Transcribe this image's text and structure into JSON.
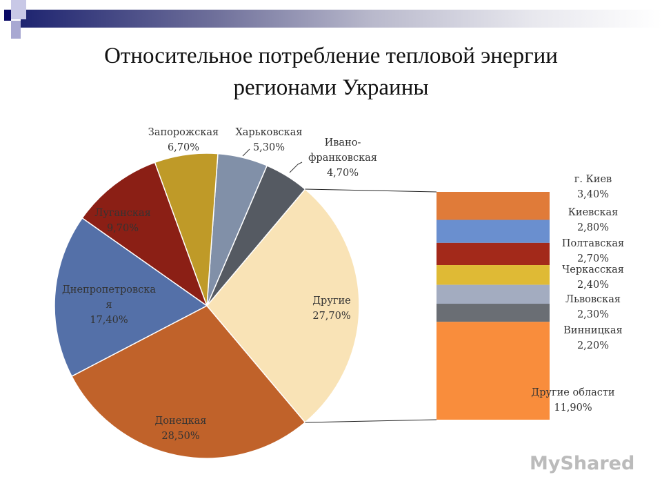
{
  "title_line1": "Относительное потребление тепловой энергии",
  "title_line2": "регионами Украины",
  "logo": "MyShared",
  "chart_data": {
    "type": "pie-of-bar",
    "title": "Относительное потребление тепловой энергии регионами Украины",
    "pie": [
      {
        "name": "Другие",
        "value": 27.7,
        "label": "27,70%",
        "color": "#f9e3b6"
      },
      {
        "name": "Ивано-франковская",
        "value": 4.7,
        "label": "4,70%",
        "color": "#555a62"
      },
      {
        "name": "Харьковская",
        "value": 5.3,
        "label": "5,30%",
        "color": "#8190a8"
      },
      {
        "name": "Запорожская",
        "value": 6.7,
        "label": "6,70%",
        "color": "#bf9a28"
      },
      {
        "name": "Луганская",
        "value": 9.7,
        "label": "9,70%",
        "color": "#8b1f15"
      },
      {
        "name": "Днепропетровская",
        "value": 17.4,
        "label": "17,40%",
        "color": "#5470a8"
      },
      {
        "name": "Донецкая",
        "value": 28.5,
        "label": "28,50%",
        "color": "#c0622a"
      }
    ],
    "bar": [
      {
        "name": "г. Киев",
        "value": 3.4,
        "label": "3,40%",
        "color": "#e07b39"
      },
      {
        "name": "Киевская",
        "value": 2.8,
        "label": "2,80%",
        "color": "#6a8fcf"
      },
      {
        "name": "Полтавская",
        "value": 2.7,
        "label": "2,70%",
        "color": "#a3291a"
      },
      {
        "name": "Черкасская",
        "value": 2.4,
        "label": "2,40%",
        "color": "#dfba35"
      },
      {
        "name": "Львовская",
        "value": 2.3,
        "label": "2,30%",
        "color": "#a3acc0"
      },
      {
        "name": "Винницкая",
        "value": 2.2,
        "label": "2,20%",
        "color": "#6a6e74"
      },
      {
        "name": "Другие области",
        "value": 11.9,
        "label": "11,90%",
        "color": "#f98d3c"
      }
    ]
  }
}
